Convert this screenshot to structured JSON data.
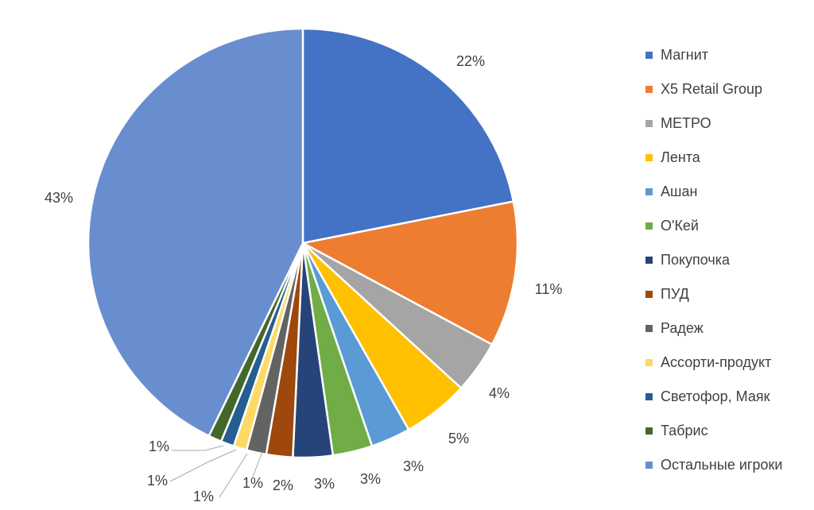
{
  "chart_data": {
    "type": "pie",
    "title": "",
    "slices": [
      {
        "label": "Магнит",
        "value": 22,
        "display": "22%",
        "color": "#4472C4"
      },
      {
        "label": "X5 Retail Group",
        "value": 11,
        "display": "11%",
        "color": "#ED7D31"
      },
      {
        "label": "МЕТРО",
        "value": 4,
        "display": "4%",
        "color": "#A5A5A5"
      },
      {
        "label": "Лента",
        "value": 5,
        "display": "5%",
        "color": "#FFC000"
      },
      {
        "label": "Ашан",
        "value": 3,
        "display": "3%",
        "color": "#5B9BD5"
      },
      {
        "label": "О'Кей",
        "value": 3,
        "display": "3%",
        "color": "#70AD47"
      },
      {
        "label": "Покупочка",
        "value": 3,
        "display": "3%",
        "color": "#264478"
      },
      {
        "label": "ПУД",
        "value": 2,
        "display": "2%",
        "color": "#9E480E"
      },
      {
        "label": "Радеж",
        "value": 1.5,
        "display": "1%",
        "color": "#636363"
      },
      {
        "label": "Ассорти-продукт",
        "value": 1,
        "display": "1%",
        "color": "#FFD966"
      },
      {
        "label": "Светофор, Маяк",
        "value": 1,
        "display": "1%",
        "color": "#255E91"
      },
      {
        "label": "Табрис",
        "value": 1,
        "display": "1%",
        "color": "#43682B"
      },
      {
        "label": "Остальные игроки",
        "value": 43,
        "display": "43%",
        "color": "#698ED0"
      }
    ],
    "legend_position": "right"
  }
}
